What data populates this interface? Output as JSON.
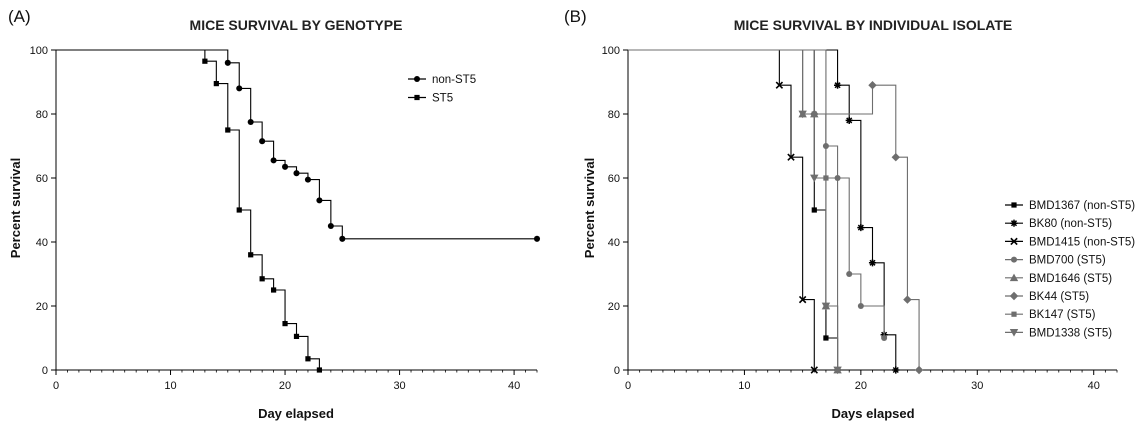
{
  "chart_data": [
    {
      "panel": "(A)",
      "type": "line",
      "step": true,
      "title": "MICE SURVIVAL BY GENOTYPE",
      "xlabel": "Day elapsed",
      "ylabel": "Percent survival",
      "xlim": [
        0,
        42
      ],
      "ylim": [
        0,
        100
      ],
      "xticks": [
        0,
        10,
        20,
        30,
        40
      ],
      "yticks": [
        0,
        20,
        40,
        60,
        80,
        100
      ],
      "grid": false,
      "legend_position": "top-right",
      "series": [
        {
          "name": "non-ST5",
          "color": "#000000",
          "marker": "circle",
          "x": [
            0,
            15,
            16,
            17,
            18,
            19,
            20,
            21,
            22,
            23,
            24,
            25,
            42
          ],
          "y": [
            100,
            96,
            88,
            77.5,
            71.5,
            65.5,
            63.5,
            61.5,
            59.5,
            53,
            45,
            41,
            41
          ]
        },
        {
          "name": "ST5",
          "color": "#000000",
          "marker": "square",
          "x": [
            0,
            13,
            14,
            15,
            16,
            17,
            18,
            19,
            20,
            21,
            22,
            23
          ],
          "y": [
            100,
            96.5,
            89.5,
            75,
            50,
            36,
            28.5,
            25,
            14.5,
            10.5,
            3.5,
            0
          ]
        }
      ]
    },
    {
      "panel": "(B)",
      "type": "line",
      "step": true,
      "title": "MICE SURVIVAL BY INDIVIDUAL ISOLATE",
      "xlabel": "Days elapsed",
      "ylabel": "Percent survival",
      "xlim": [
        0,
        42
      ],
      "ylim": [
        0,
        100
      ],
      "xticks": [
        0,
        10,
        20,
        30,
        40
      ],
      "yticks": [
        0,
        20,
        40,
        60,
        80,
        100
      ],
      "grid": false,
      "legend_position": "right",
      "series": [
        {
          "name": "BMD1367 (non-ST5)",
          "color": "#000000",
          "marker": "square",
          "x": [
            0,
            16,
            17,
            18
          ],
          "y": [
            100,
            50,
            10,
            0
          ]
        },
        {
          "name": "BK80 (non-ST5)",
          "color": "#000000",
          "marker": "asterisk",
          "x": [
            0,
            18,
            19,
            20,
            21,
            22,
            23
          ],
          "y": [
            100,
            89,
            78,
            44.5,
            33.5,
            11,
            0
          ]
        },
        {
          "name": "BMD1415 (non-ST5)",
          "color": "#000000",
          "marker": "cross",
          "x": [
            0,
            13,
            14,
            15,
            16
          ],
          "y": [
            100,
            89,
            66.5,
            22,
            0
          ]
        },
        {
          "name": "BMD700 (ST5)",
          "color": "#6e6e6e",
          "marker": "circle",
          "x": [
            0,
            17,
            18,
            19,
            20,
            22
          ],
          "y": [
            100,
            70,
            60,
            30,
            20,
            10
          ]
        },
        {
          "name": "BMD1646 (ST5)",
          "color": "#6e6e6e",
          "marker": "triangle-up",
          "x": [
            0,
            15,
            16,
            17,
            18
          ],
          "y": [
            100,
            80,
            80,
            20,
            0
          ]
        },
        {
          "name": "BK44 (ST5)",
          "color": "#6e6e6e",
          "marker": "diamond",
          "x": [
            0,
            16,
            21,
            23,
            24,
            25
          ],
          "y": [
            100,
            80,
            89,
            66.5,
            22,
            0
          ]
        },
        {
          "name": "BK147 (ST5)",
          "color": "#6e6e6e",
          "marker": "square",
          "x": [
            0,
            16,
            17,
            18
          ],
          "y": [
            100,
            80,
            60,
            0
          ]
        },
        {
          "name": "BMD1338 (ST5)",
          "color": "#6e6e6e",
          "marker": "triangle-down",
          "x": [
            0,
            15,
            16,
            17,
            18
          ],
          "y": [
            100,
            80,
            60,
            20,
            0
          ]
        }
      ]
    }
  ]
}
